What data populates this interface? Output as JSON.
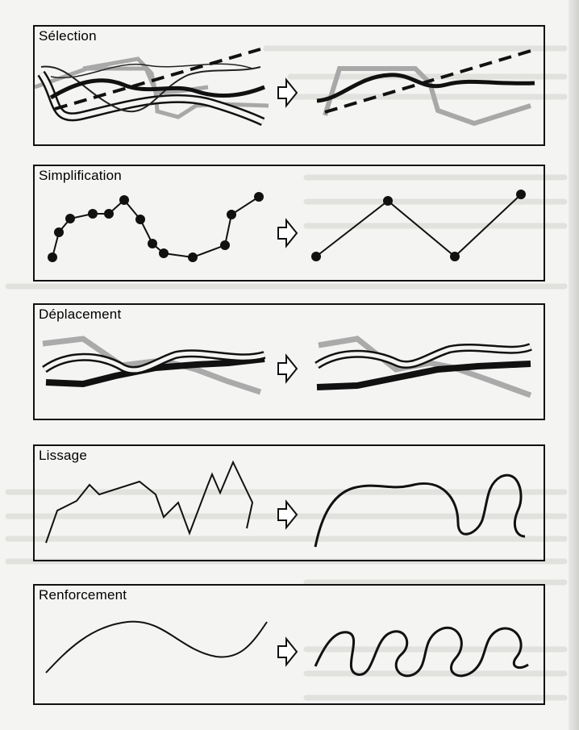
{
  "panels": [
    {
      "title": "Sélection"
    },
    {
      "title": "Simplification"
    },
    {
      "title": "Déplacement"
    },
    {
      "title": "Lissage"
    },
    {
      "title": "Renforcement"
    }
  ]
}
